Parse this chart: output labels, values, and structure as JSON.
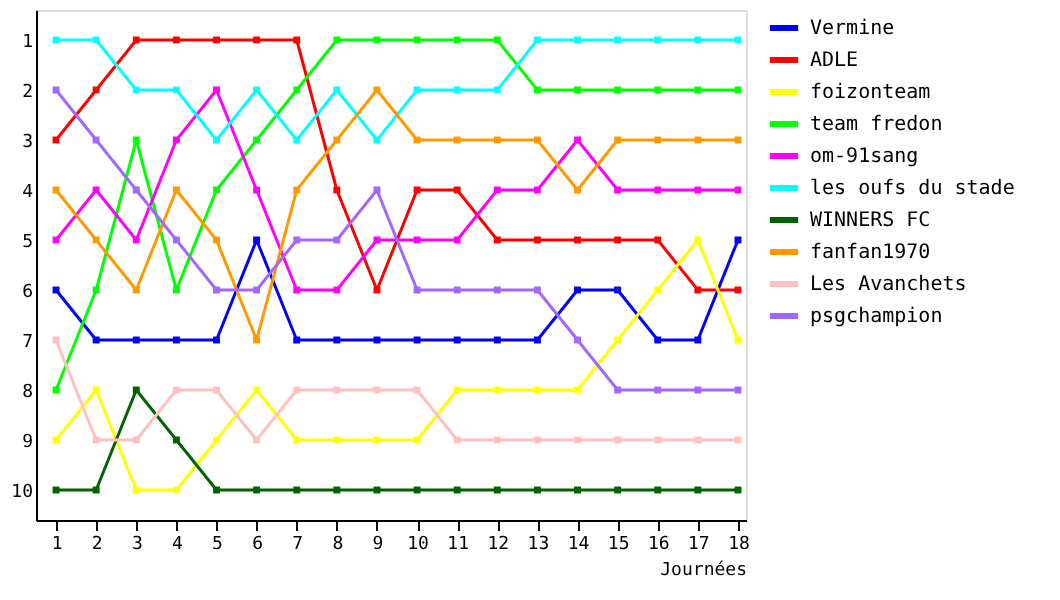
{
  "chart_data": {
    "type": "line",
    "xlabel": "Journées",
    "x": [
      1,
      2,
      3,
      4,
      5,
      6,
      7,
      8,
      9,
      10,
      11,
      12,
      13,
      14,
      15,
      16,
      17,
      18
    ],
    "xlim": [
      0.5,
      18.2
    ],
    "xticks": [
      1,
      2,
      3,
      4,
      5,
      6,
      7,
      8,
      9,
      10,
      11,
      12,
      13,
      14,
      15,
      16,
      17,
      18
    ],
    "ylim": [
      10.6,
      0.4
    ],
    "yticks": [
      1,
      2,
      3,
      4,
      5,
      6,
      7,
      8,
      9,
      10
    ],
    "grid": false,
    "legend": "right",
    "marker": "square",
    "line_style": "solid",
    "series": [
      {
        "name": "Vermine",
        "color": "#0000ff",
        "values": [
          6,
          7,
          7,
          7,
          7,
          5,
          7,
          7,
          7,
          7,
          7,
          7,
          7,
          6,
          6,
          7,
          7,
          5
        ]
      },
      {
        "name": "ADLE",
        "color": "#ff0000",
        "values": [
          3,
          2,
          1,
          1,
          1,
          1,
          1,
          4,
          6,
          4,
          4,
          5,
          5,
          5,
          5,
          5,
          6,
          6
        ]
      },
      {
        "name": "foizonteam",
        "color": "#ffff00",
        "values": [
          9,
          8,
          10,
          10,
          9,
          8,
          9,
          9,
          9,
          9,
          8,
          8,
          8,
          8,
          7,
          6,
          5,
          7
        ]
      },
      {
        "name": "team fredon",
        "color": "#00ff00",
        "values": [
          8,
          6,
          3,
          6,
          4,
          3,
          2,
          1,
          1,
          1,
          1,
          1,
          2,
          2,
          2,
          2,
          2,
          2
        ]
      },
      {
        "name": "om-91sang",
        "color": "#ff00ff",
        "values": [
          5,
          4,
          5,
          3,
          2,
          4,
          6,
          6,
          5,
          5,
          5,
          4,
          4,
          3,
          4,
          4,
          4,
          4
        ]
      },
      {
        "name": "les oufs du stade",
        "color": "#00ffff",
        "values": [
          1,
          1,
          2,
          2,
          3,
          2,
          3,
          2,
          3,
          2,
          2,
          2,
          1,
          1,
          1,
          1,
          1,
          1
        ]
      },
      {
        "name": "WINNERS FC",
        "color": "#006400",
        "values": [
          10,
          10,
          8,
          9,
          10,
          10,
          10,
          10,
          10,
          10,
          10,
          10,
          10,
          10,
          10,
          10,
          10,
          10
        ]
      },
      {
        "name": "fanfan1970",
        "color": "#ff9900",
        "values": [
          4,
          5,
          6,
          4,
          5,
          7,
          4,
          3,
          2,
          3,
          3,
          3,
          3,
          4,
          3,
          3,
          3,
          3
        ]
      },
      {
        "name": "Les Avanchets",
        "color": "#ffc0c0",
        "values": [
          7,
          9,
          9,
          8,
          8,
          9,
          8,
          8,
          8,
          8,
          9,
          9,
          9,
          9,
          9,
          9,
          9,
          9
        ]
      },
      {
        "name": "psgchampion",
        "color": "#a366ff",
        "values": [
          2,
          3,
          4,
          5,
          6,
          6,
          5,
          5,
          4,
          6,
          6,
          6,
          6,
          7,
          8,
          8,
          8,
          8
        ]
      }
    ]
  }
}
